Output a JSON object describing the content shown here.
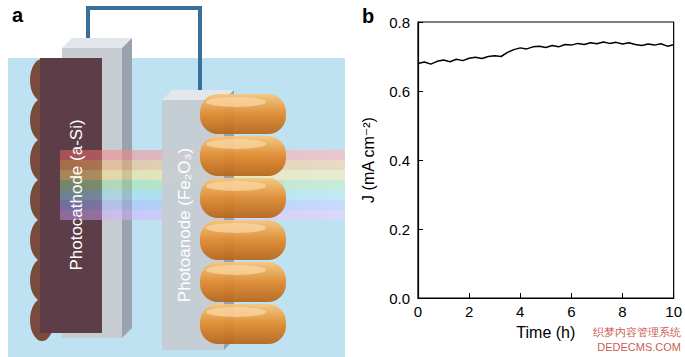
{
  "chart_data": {
    "type": "line",
    "title": "b",
    "x_label": "Time (h)",
    "y_label": "J (mA cm⁻²)",
    "x": [
      0,
      0.25,
      0.5,
      0.75,
      1,
      1.25,
      1.5,
      1.75,
      2,
      2.25,
      2.5,
      2.75,
      3,
      3.25,
      3.5,
      3.75,
      4,
      4.25,
      4.5,
      4.75,
      5,
      5.25,
      5.5,
      5.75,
      6,
      6.25,
      6.5,
      6.75,
      7,
      7.25,
      7.5,
      7.75,
      8,
      8.25,
      8.5,
      8.75,
      9,
      9.25,
      9.5,
      9.75,
      10
    ],
    "values": [
      0.68,
      0.684,
      0.678,
      0.686,
      0.69,
      0.685,
      0.692,
      0.688,
      0.695,
      0.698,
      0.694,
      0.7,
      0.702,
      0.7,
      0.712,
      0.72,
      0.725,
      0.722,
      0.728,
      0.73,
      0.726,
      0.732,
      0.728,
      0.735,
      0.733,
      0.738,
      0.735,
      0.74,
      0.737,
      0.742,
      0.738,
      0.741,
      0.736,
      0.74,
      0.735,
      0.732,
      0.736,
      0.733,
      0.737,
      0.73,
      0.734
    ],
    "color": "#000000",
    "xlim": [
      0,
      10
    ],
    "xticks": [
      0,
      2,
      4,
      6,
      8,
      10
    ],
    "ylim": [
      0,
      0.8
    ],
    "yticks": [
      {
        "value": 0,
        "label": "0.0"
      },
      0.2,
      0.4,
      0.6,
      0.8
    ],
    "grid": false
  },
  "diagram": {
    "panel_label": "a",
    "photocathode": "Photocathode (a-Si)",
    "photoanode": "Photoanode (Fe₂O₃)"
  },
  "watermark": {
    "lines": [
      "织梦内容管理系统",
      "DEDECMS.COM"
    ]
  }
}
